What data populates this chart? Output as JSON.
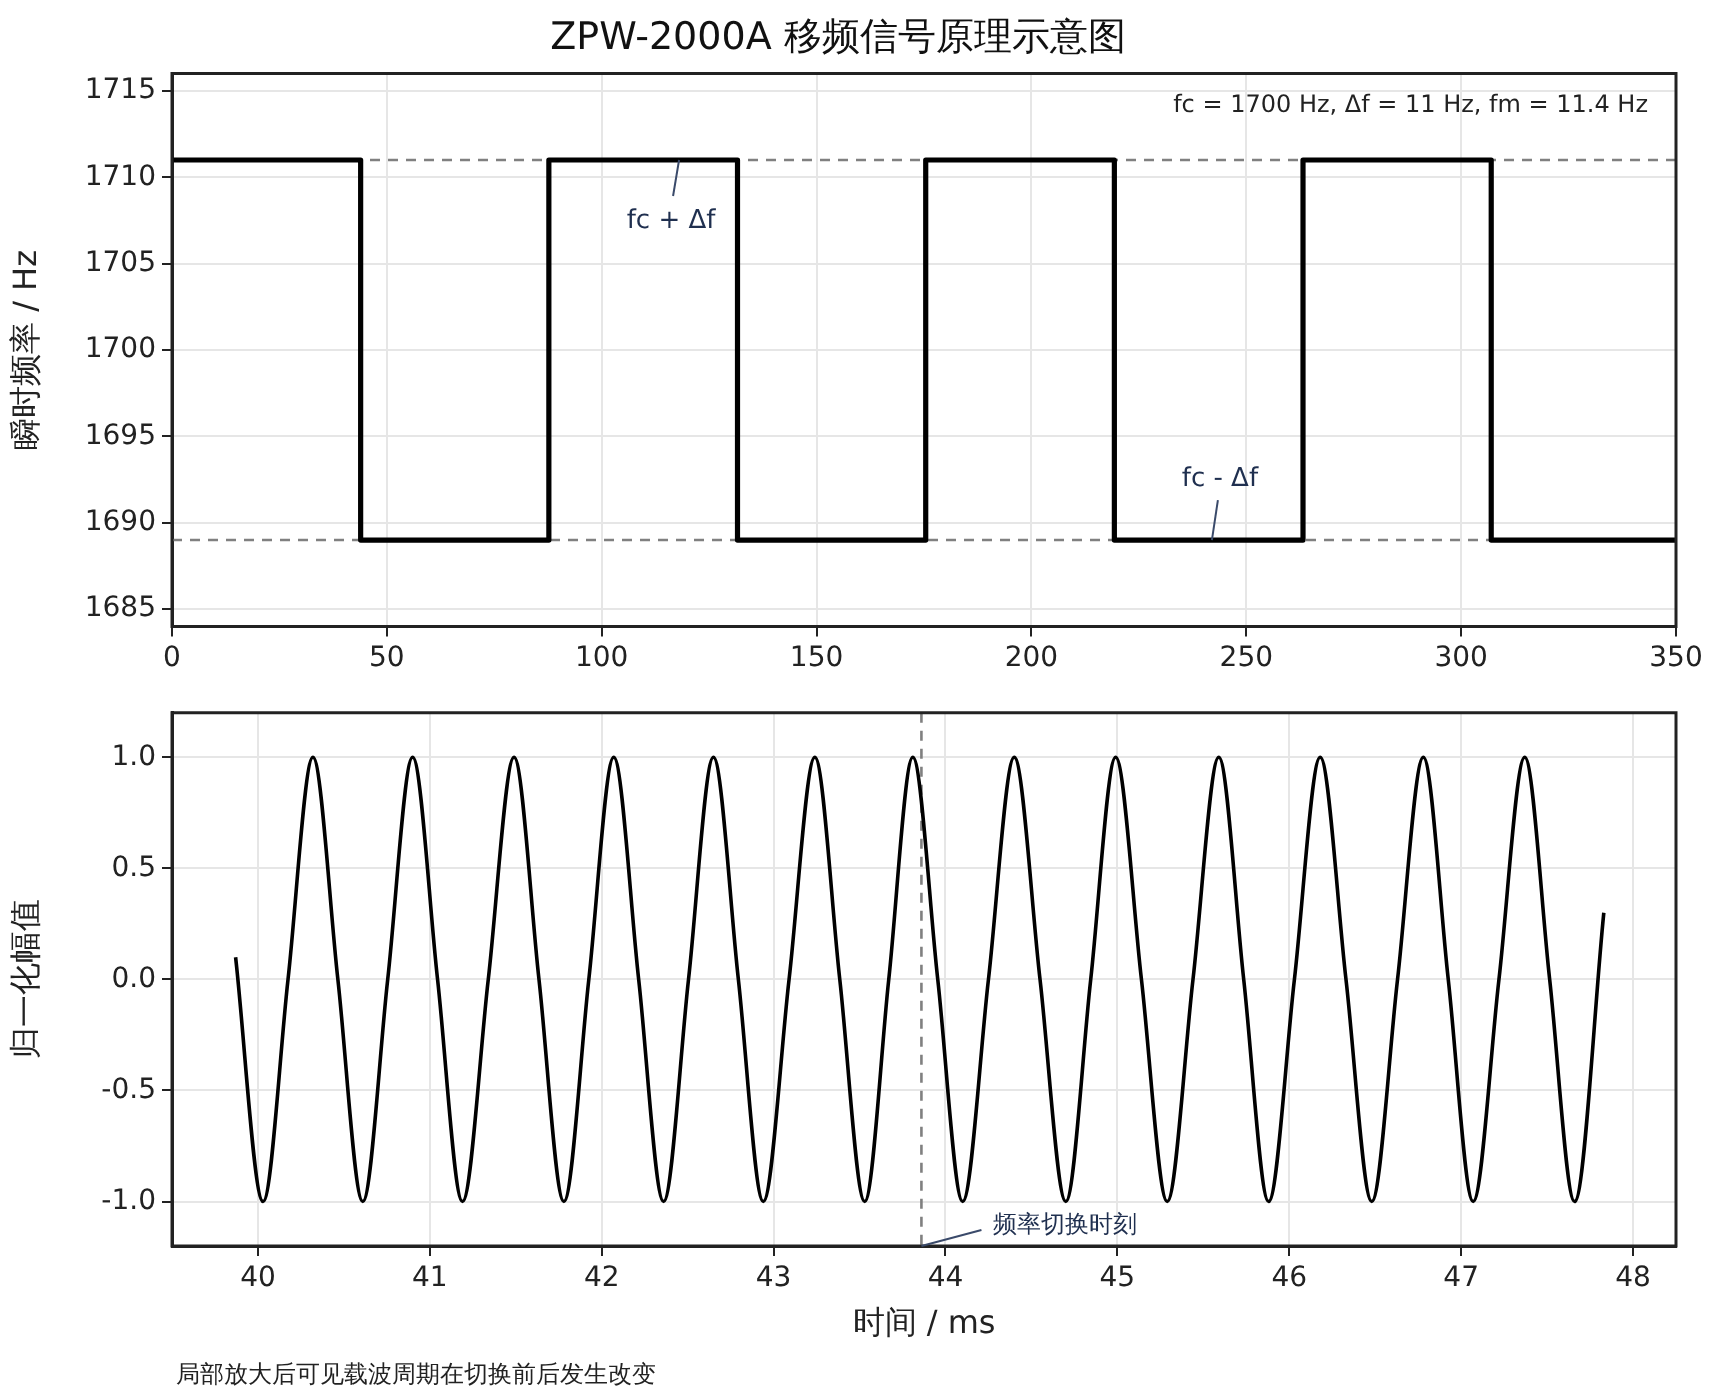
{
  "chart_data": [
    {
      "type": "step",
      "title": "ZPW-2000A 移频信号原理示意图",
      "ylabel": "瞬时频率 / Hz",
      "x": [
        0,
        43.9,
        87.7,
        131.6,
        175.4,
        219.3,
        263.2,
        307.0,
        350
      ],
      "series": [
        {
          "color": "#000000",
          "values": [
            1711,
            1689,
            1711,
            1689,
            1711,
            1689,
            1711,
            1689,
            1689
          ]
        }
      ],
      "xlim": [
        0,
        350
      ],
      "xticks": [
        0,
        50,
        100,
        150,
        200,
        250,
        300,
        350
      ],
      "ylim": [
        1684,
        1716
      ],
      "yticks": [
        1685,
        1690,
        1695,
        1700,
        1705,
        1710,
        1715
      ],
      "ref_lines": [
        {
          "axis": "y",
          "value": 1711,
          "color": "#808080",
          "line_style": "dashed"
        },
        {
          "axis": "y",
          "value": 1689,
          "color": "#808080",
          "line_style": "dashed"
        }
      ],
      "annotations": [
        "fc = 1700 Hz, Δf = 11 Hz, fm = 11.4 Hz",
        {
          "text": "fc + Δf",
          "x": 118,
          "y": 1711
        },
        {
          "text": "fc - Δf",
          "x": 242,
          "y": 1689
        }
      ],
      "grid": true,
      "marker": "none",
      "line_style": "solid"
    },
    {
      "type": "line",
      "xlabel": "时间 / ms",
      "ylabel": "归一化幅值",
      "x": [
        39.87,
        40.03,
        40.175,
        40.32,
        40.465,
        40.61,
        40.755,
        40.9,
        41.045,
        41.19,
        41.34,
        41.49,
        41.635,
        41.78,
        41.925,
        42.07,
        42.215,
        42.36,
        42.505,
        42.65,
        42.795,
        42.94,
        43.09,
        43.24,
        43.385,
        43.53,
        43.67,
        43.81,
        43.955,
        44.1,
        44.25,
        44.4,
        44.55,
        44.7,
        44.845,
        44.99,
        45.14,
        45.29,
        45.44,
        45.59,
        45.735,
        45.88,
        46.03,
        46.18,
        46.33,
        46.48,
        46.63,
        46.78,
        46.925,
        47.07,
        47.22,
        47.37,
        47.515,
        47.66,
        47.83
      ],
      "series": [
        {
          "color": "#000000",
          "values": [
            0.1,
            -1,
            0,
            1,
            0,
            -1,
            0,
            1,
            0,
            -1,
            0,
            1,
            0,
            -1,
            0,
            1,
            0,
            -1,
            0,
            1,
            0,
            -1,
            0,
            1,
            0,
            -1,
            0,
            1,
            0,
            -1,
            0,
            1,
            0,
            -1,
            0,
            1,
            0,
            -1,
            0,
            1,
            0,
            -1,
            0,
            1,
            0,
            -1,
            0,
            1,
            0,
            -1,
            0,
            1,
            0,
            -1,
            0.3
          ]
        }
      ],
      "xlim": [
        39.5,
        48.25
      ],
      "xticks": [
        40,
        41,
        42,
        43,
        44,
        45,
        46,
        47,
        48
      ],
      "ylim": [
        -1.2,
        1.2
      ],
      "yticks": [
        {
          "value": -1,
          "label": "-1.0"
        },
        {
          "value": -0.5,
          "label": "-0.5"
        },
        {
          "value": 0,
          "label": "0.0"
        },
        {
          "value": 0.5,
          "label": "0.5"
        },
        {
          "value": 1,
          "label": "1.0"
        }
      ],
      "ref_lines": [
        {
          "axis": "x",
          "value": 43.86,
          "color": "#808080",
          "line_style": "dashed"
        }
      ],
      "annotations": [
        {
          "text": "频率切换时刻",
          "x": 43.86,
          "y": -1.2
        },
        "局部放大后可见载波周期在切换前后发生改变"
      ],
      "grid": true,
      "marker": "none",
      "line_style": "solid"
    }
  ]
}
